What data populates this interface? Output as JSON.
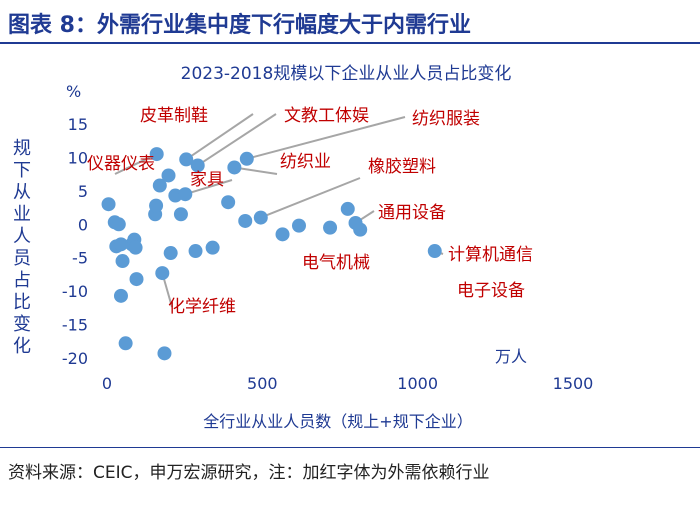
{
  "header": {
    "title": "图表 8：外需行业集中度下行幅度大于内需行业"
  },
  "footer": {
    "note": "资料来源：CEIC，申万宏源研究，注：加红字体为外需依赖行业"
  },
  "colors": {
    "title": "#1f3a93",
    "point": "#5b9bd5",
    "highlight_label": "#c00000",
    "axis_text": "#1f3a93",
    "leader": "#a6a6a6"
  },
  "chart_data": {
    "type": "scatter",
    "title": "2023-2018规模以下企业从业人员占比变化",
    "xlabel": "全行业从业人员数（规上+规下企业）",
    "x_unit": "万人",
    "ylabel": "规下从业人员占比变化",
    "y_unit": "%",
    "xlim": [
      0,
      1500
    ],
    "ylim": [
      -20,
      15
    ],
    "x_ticks": [
      "0",
      "500",
      "1000",
      "1500"
    ],
    "y_ticks": [
      "15",
      "10",
      "5",
      "0",
      "-5",
      "-10",
      "-15",
      "-20"
    ],
    "grid": false,
    "legend": "none",
    "points": [
      {
        "x": 5,
        "y": 3.0
      },
      {
        "x": 25,
        "y": 0.3
      },
      {
        "x": 38,
        "y": 0.0
      },
      {
        "x": 30,
        "y": -3.3
      },
      {
        "x": 45,
        "y": -3.0
      },
      {
        "x": 50,
        "y": -5.5
      },
      {
        "x": 45,
        "y": -10.7
      },
      {
        "x": 60,
        "y": -17.8
      },
      {
        "x": 80,
        "y": -3.0
      },
      {
        "x": 88,
        "y": -2.3
      },
      {
        "x": 92,
        "y": -3.5
      },
      {
        "x": 95,
        "y": -8.2
      },
      {
        "x": 155,
        "y": 1.5
      },
      {
        "x": 158,
        "y": 2.8
      },
      {
        "x": 160,
        "y": 10.5
      },
      {
        "x": 170,
        "y": 5.8
      },
      {
        "x": 178,
        "y": -7.3
      },
      {
        "x": 185,
        "y": -19.3
      },
      {
        "x": 198,
        "y": 7.3
      },
      {
        "x": 205,
        "y": -4.3
      },
      {
        "x": 220,
        "y": 4.3
      },
      {
        "x": 238,
        "y": 1.5
      },
      {
        "x": 252,
        "y": 4.5
      },
      {
        "x": 255,
        "y": 9.7
      },
      {
        "x": 285,
        "y": -4.0
      },
      {
        "x": 292,
        "y": 8.8
      },
      {
        "x": 340,
        "y": -3.5
      },
      {
        "x": 390,
        "y": 3.3
      },
      {
        "x": 410,
        "y": 8.5
      },
      {
        "x": 445,
        "y": 0.5
      },
      {
        "x": 450,
        "y": 9.8
      },
      {
        "x": 495,
        "y": 1.0
      },
      {
        "x": 565,
        "y": -1.5
      },
      {
        "x": 618,
        "y": -0.2
      },
      {
        "x": 718,
        "y": -0.5
      },
      {
        "x": 775,
        "y": 2.3
      },
      {
        "x": 800,
        "y": 0.2
      },
      {
        "x": 815,
        "y": -0.8
      },
      {
        "x": 1055,
        "y": -4.0
      }
    ],
    "annotations": [
      {
        "text": "皮革制鞋",
        "x": 255,
        "y": 9.7
      },
      {
        "text": "文教工体娱",
        "x": 292,
        "y": 8.8
      },
      {
        "text": "纺织服装",
        "x": 450,
        "y": 9.8
      },
      {
        "text": "仪器仪表",
        "x": 160,
        "y": 10.5
      },
      {
        "text": "家具",
        "x": 252,
        "y": 4.5
      },
      {
        "text": "纺织业",
        "x": 410,
        "y": 8.5
      },
      {
        "text": "橡胶塑料",
        "x": 495,
        "y": 1.0
      },
      {
        "text": "通用设备",
        "x": 800,
        "y": 0.2
      },
      {
        "text": "电气机械",
        "x": null,
        "y": null
      },
      {
        "text": "计算机通信",
        "x": 1055,
        "y": -4.0
      },
      {
        "text": "电子设备",
        "x": null,
        "y": null
      },
      {
        "text": "化学纤维",
        "x": 178,
        "y": -7.3
      }
    ]
  }
}
